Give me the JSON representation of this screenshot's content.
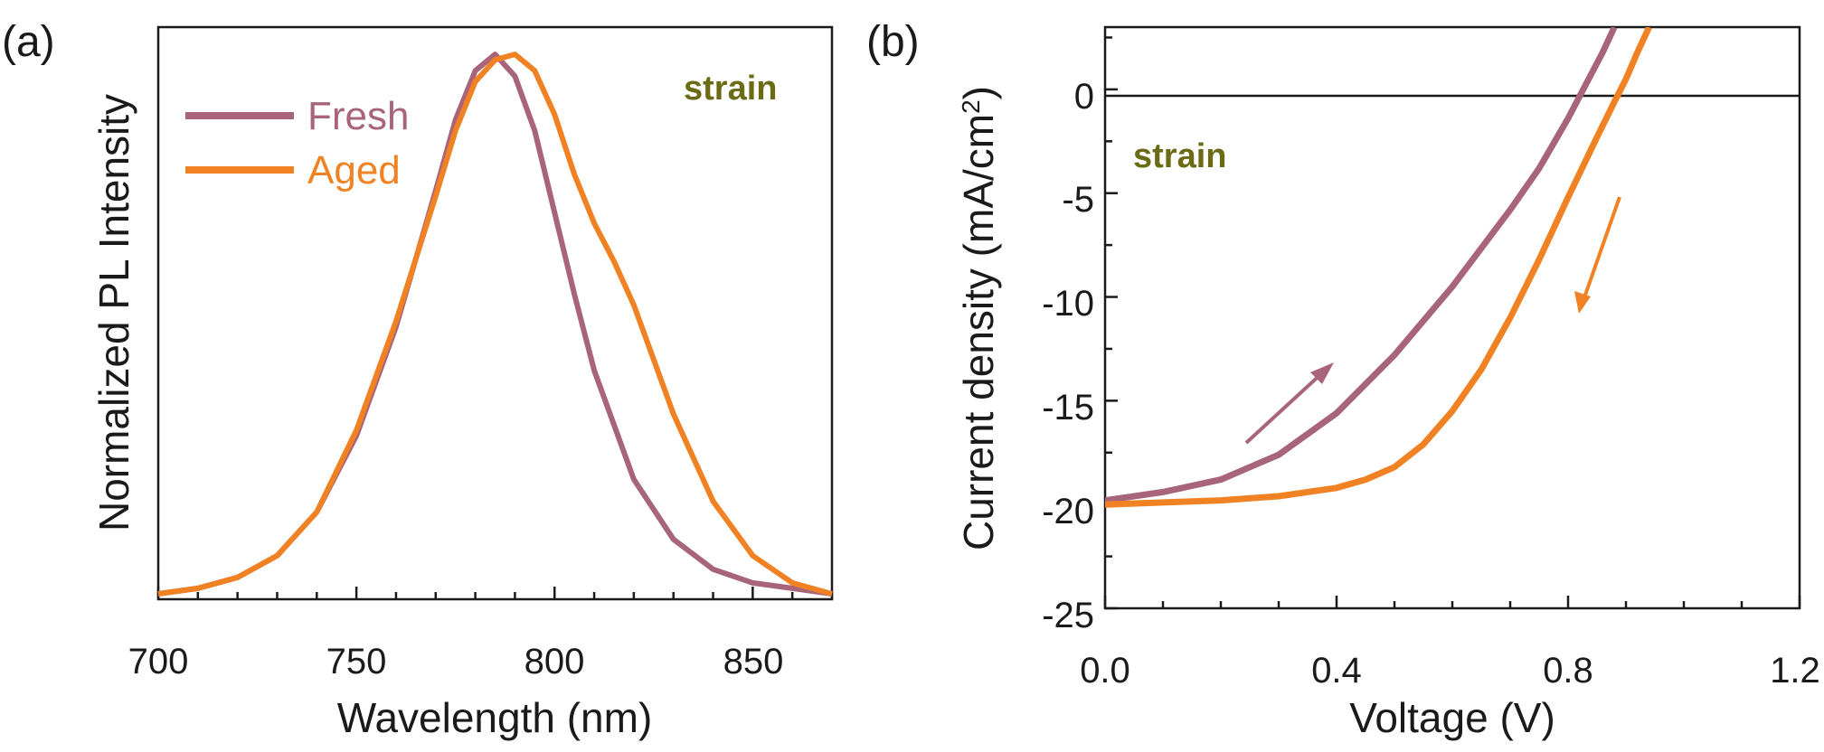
{
  "colors": {
    "fresh": "#a8657a",
    "aged": "#f08224",
    "annotation": "#6b6b16",
    "axis": "#1a1a1a"
  },
  "chart_data": [
    {
      "panel": "(a)",
      "type": "line",
      "title": "",
      "xlabel": "Wavelength (nm)",
      "ylabel": "Normalized PL Intensity",
      "xlim": [
        700,
        870
      ],
      "ylim": [
        0,
        1.05
      ],
      "xticks": [
        "700",
        "750",
        "800",
        "850"
      ],
      "annotation": "strain",
      "legend": {
        "position": "top-left",
        "entries": [
          "Fresh",
          "Aged"
        ]
      },
      "series": [
        {
          "name": "Fresh",
          "x": [
            700,
            710,
            720,
            730,
            740,
            750,
            760,
            770,
            775,
            780,
            785,
            790,
            795,
            800,
            805,
            810,
            820,
            830,
            840,
            850,
            860,
            870
          ],
          "y": [
            0.01,
            0.02,
            0.04,
            0.08,
            0.16,
            0.3,
            0.5,
            0.75,
            0.88,
            0.97,
            1.0,
            0.96,
            0.86,
            0.71,
            0.56,
            0.42,
            0.22,
            0.11,
            0.055,
            0.03,
            0.02,
            0.01
          ]
        },
        {
          "name": "Aged",
          "x": [
            700,
            710,
            720,
            730,
            740,
            750,
            760,
            770,
            775,
            780,
            785,
            790,
            795,
            800,
            805,
            810,
            815,
            820,
            825,
            830,
            840,
            850,
            860,
            870
          ],
          "y": [
            0.01,
            0.02,
            0.04,
            0.08,
            0.16,
            0.31,
            0.51,
            0.74,
            0.86,
            0.95,
            0.99,
            1.0,
            0.97,
            0.89,
            0.78,
            0.69,
            0.62,
            0.54,
            0.44,
            0.34,
            0.18,
            0.08,
            0.03,
            0.01
          ]
        }
      ]
    },
    {
      "panel": "(b)",
      "type": "line",
      "title": "",
      "xlabel": "Voltage (V)",
      "ylabel": "Current density (mA/cm²)",
      "ylabel_parts": [
        "Current density (mA/cm",
        "2",
        ")"
      ],
      "xlim": [
        0,
        1.2
      ],
      "ylim": [
        -25,
        3
      ],
      "xticks": [
        "0.0",
        "0.4",
        "0.8",
        "1.2"
      ],
      "yticks": [
        "0",
        "-5",
        "-10",
        "-15",
        "-20",
        "-25"
      ],
      "annotation": "strain",
      "zero_line": true,
      "series": [
        {
          "name": "Fresh",
          "direction": "forward",
          "x": [
            0.0,
            0.1,
            0.2,
            0.3,
            0.4,
            0.5,
            0.6,
            0.7,
            0.75,
            0.8,
            0.83,
            0.86,
            0.88
          ],
          "y": [
            -19.8,
            -19.4,
            -18.8,
            -17.6,
            -15.6,
            -12.8,
            -9.5,
            -5.8,
            -3.8,
            -1.4,
            0.2,
            1.8,
            3.0
          ]
        },
        {
          "name": "Aged",
          "direction": "reverse",
          "x": [
            0.0,
            0.1,
            0.2,
            0.3,
            0.4,
            0.45,
            0.5,
            0.55,
            0.6,
            0.65,
            0.7,
            0.75,
            0.8,
            0.85,
            0.88,
            0.9,
            0.92,
            0.94
          ],
          "y": [
            -20.0,
            -19.9,
            -19.8,
            -19.6,
            -19.2,
            -18.8,
            -18.2,
            -17.1,
            -15.5,
            -13.5,
            -11.0,
            -8.2,
            -5.2,
            -2.3,
            -0.6,
            0.5,
            1.8,
            3.0
          ]
        }
      ]
    }
  ]
}
